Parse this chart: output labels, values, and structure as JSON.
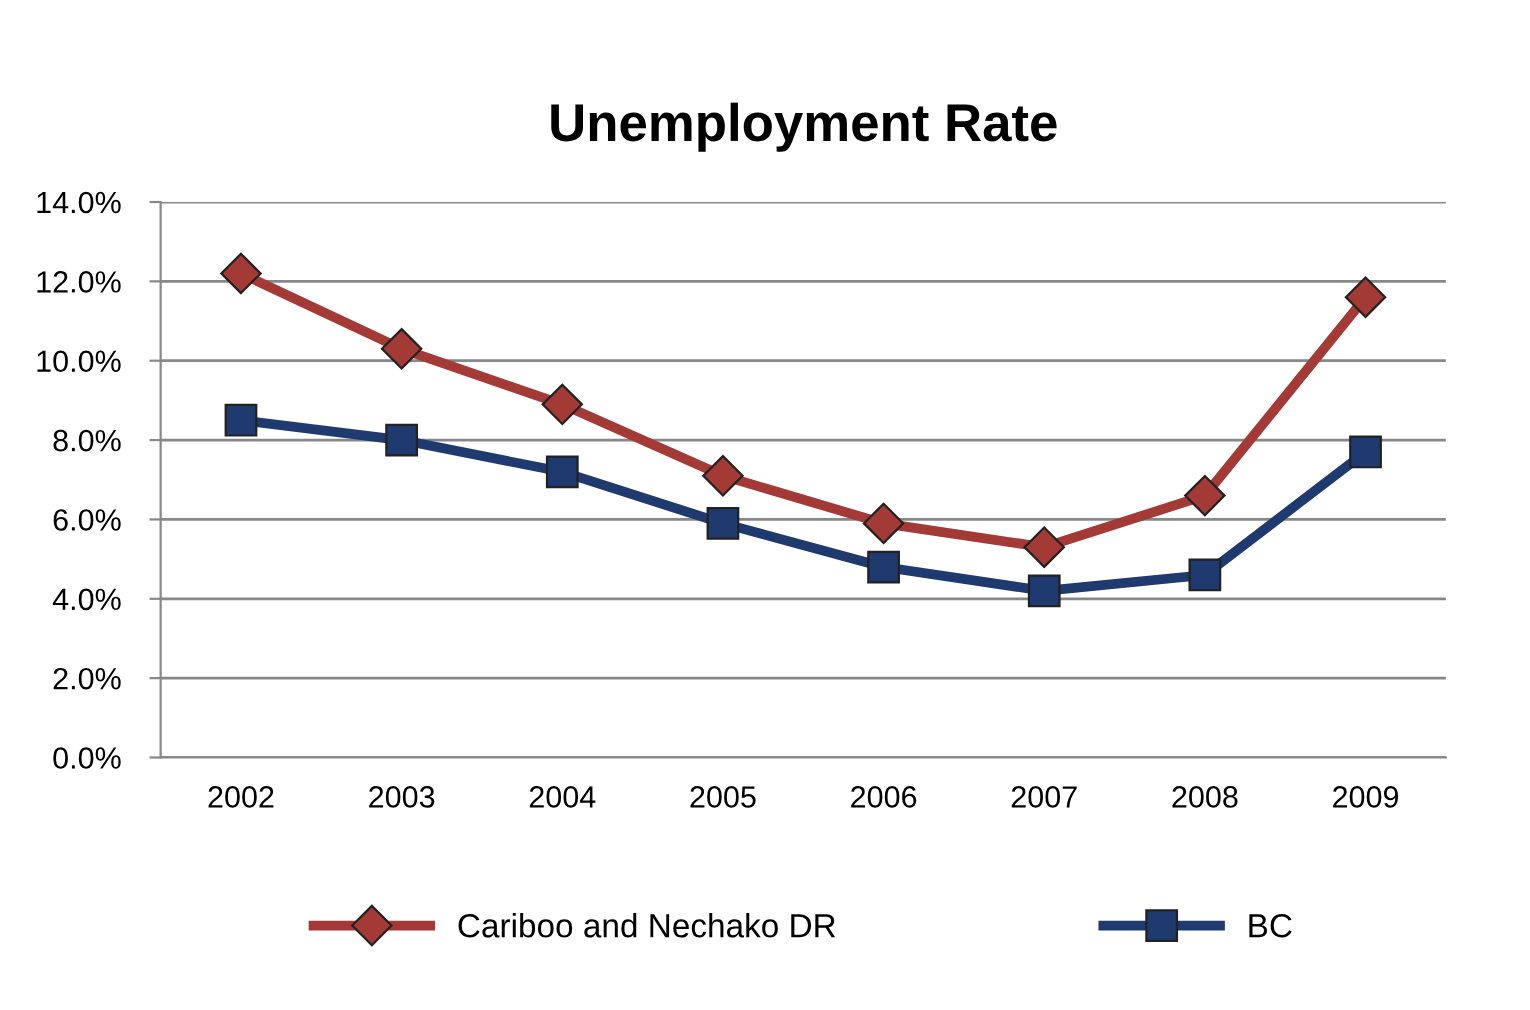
{
  "chart_data": {
    "type": "line",
    "title": "Unemployment Rate",
    "categories": [
      "2002",
      "2003",
      "2004",
      "2005",
      "2006",
      "2007",
      "2008",
      "2009"
    ],
    "series": [
      {
        "name": "Cariboo and Nechako DR",
        "color": "#a33a36",
        "marker": "diamond",
        "values": [
          12.2,
          10.3,
          8.9,
          7.1,
          5.9,
          5.3,
          6.6,
          11.6
        ]
      },
      {
        "name": "BC",
        "color": "#1f3a6e",
        "marker": "square",
        "values": [
          8.5,
          8.0,
          7.2,
          5.9,
          4.8,
          4.2,
          4.6,
          7.7
        ]
      }
    ],
    "ylim": [
      0,
      14
    ],
    "yticks": [
      {
        "value": 0,
        "label": "0.0%"
      },
      {
        "value": 2,
        "label": "2.0%"
      },
      {
        "value": 4,
        "label": "4.0%"
      },
      {
        "value": 6,
        "label": "6.0%"
      },
      {
        "value": 8,
        "label": "8.0%"
      },
      {
        "value": 10,
        "label": "10.0%"
      },
      {
        "value": 12,
        "label": "12.0%"
      },
      {
        "value": 14,
        "label": "14.0%"
      }
    ],
    "grid": "y",
    "legend": "bottom",
    "line_style": "solid"
  }
}
